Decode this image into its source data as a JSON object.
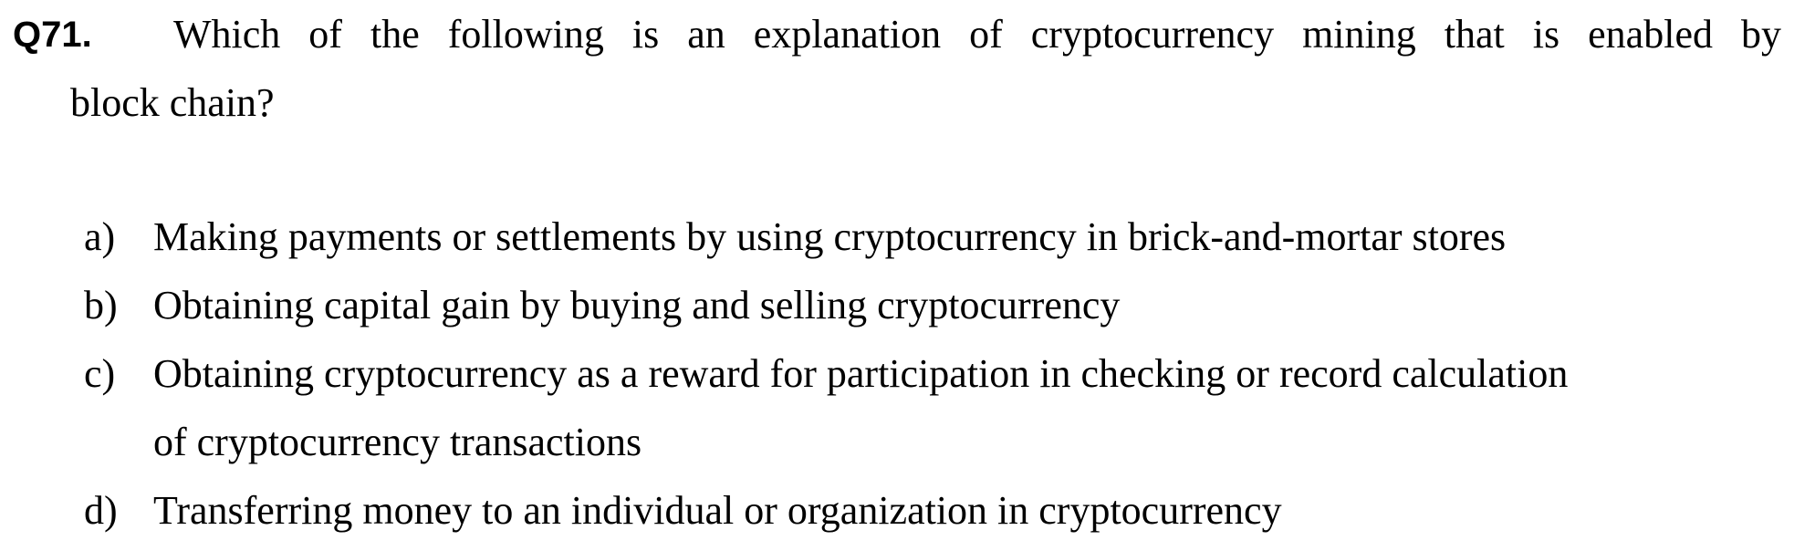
{
  "question": {
    "number": "Q71.",
    "text_line1": "Which of the following is an explanation of cryptocurrency mining that is enabled by",
    "text_line2": "block chain?"
  },
  "options": [
    {
      "letter": "a)",
      "lines": [
        "Making payments or settlements by using cryptocurrency in brick-and-mortar stores"
      ]
    },
    {
      "letter": "b)",
      "lines": [
        "Obtaining capital gain by buying and selling cryptocurrency"
      ]
    },
    {
      "letter": "c)",
      "lines": [
        "Obtaining cryptocurrency as a reward for participation in checking or record calculation",
        "of cryptocurrency transactions"
      ]
    },
    {
      "letter": "d)",
      "lines": [
        "Transferring money to an individual or organization in cryptocurrency"
      ]
    }
  ]
}
